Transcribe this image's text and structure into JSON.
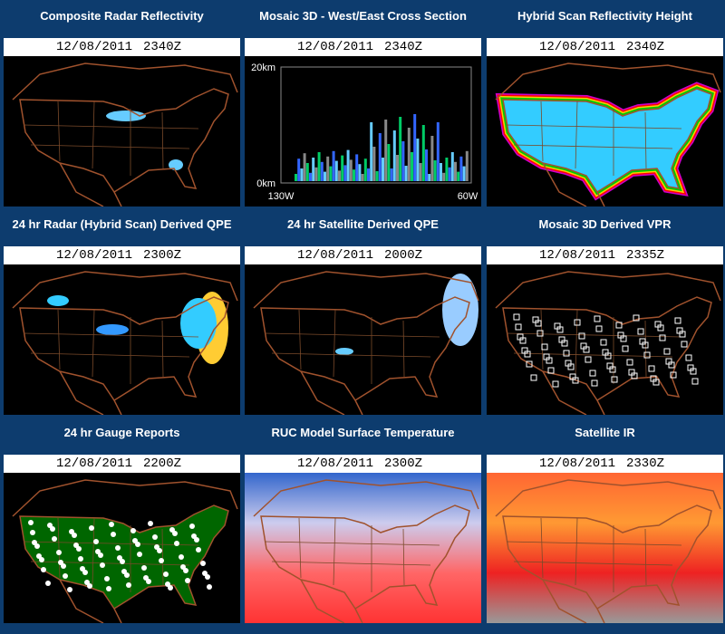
{
  "panels": [
    {
      "title": "Composite Radar Reflectivity",
      "date": "12/08/2011",
      "time": "2340Z"
    },
    {
      "title": "Mosaic 3D - West/East Cross Section",
      "date": "12/08/2011",
      "time": "2340Z"
    },
    {
      "title": "Hybrid Scan Reflectivity Height",
      "date": "12/08/2011",
      "time": "2340Z"
    },
    {
      "title": "24 hr Radar (Hybrid Scan) Derived QPE",
      "date": "12/08/2011",
      "time": "2300Z"
    },
    {
      "title": "24 hr Satellite Derived QPE",
      "date": "12/08/2011",
      "time": "2000Z"
    },
    {
      "title": "Mosaic 3D Derived VPR",
      "date": "12/08/2011",
      "time": "2335Z"
    },
    {
      "title": "24 hr Gauge Reports",
      "date": "12/08/2011",
      "time": "2200Z"
    },
    {
      "title": "RUC Model Surface Temperature",
      "date": "12/08/2011",
      "time": "2300Z"
    },
    {
      "title": "Satellite IR",
      "date": "12/08/2011",
      "time": "2330Z"
    }
  ],
  "cross_section": {
    "y_top": "20km",
    "y_bottom": "0km",
    "x_left": "130W",
    "x_right": "60W"
  }
}
